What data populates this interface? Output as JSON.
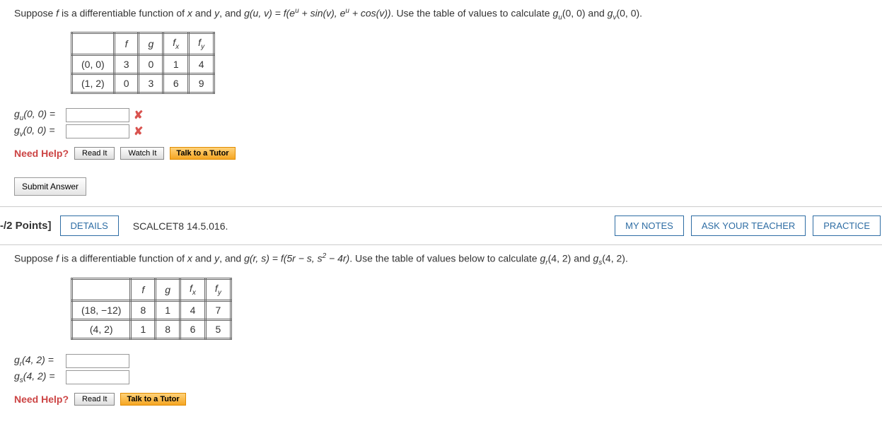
{
  "q1": {
    "text_parts": {
      "p1": "Suppose ",
      "p2": " is a differentiable function of ",
      "p3": " and ",
      "p4": ", and  ",
      "p5": ".  Use the table of values to calculate  ",
      "p6": "  and  ",
      "p7": "."
    },
    "func_g": "g(u, v) = f(e",
    "func_g2": " + sin(v), e",
    "func_g3": " + cos(v))",
    "gu": "g",
    "gu_sub": "u",
    "gu_args": "(0, 0)",
    "gv_sub": "v",
    "table": {
      "headers": [
        "",
        "f",
        "g",
        "f",
        "f"
      ],
      "header_subs": [
        "",
        "",
        "",
        "x",
        "y"
      ],
      "rows": [
        [
          "(0, 0)",
          "3",
          "0",
          "1",
          "4"
        ],
        [
          "(1, 2)",
          "0",
          "3",
          "6",
          "9"
        ]
      ]
    },
    "answers": {
      "gu_label_pre": "g",
      "gu_label_sub": "u",
      "gu_label_post": "(0, 0)  =",
      "gv_label_sub": "v",
      "gv_label_post": "(0, 0)  ="
    },
    "help_label": "Need Help?",
    "read_btn": "Read It",
    "watch_btn": "Watch It",
    "tutor_btn": "Talk to a Tutor"
  },
  "submit_label": "Submit Answer",
  "divider": {
    "points": "-/2 Points]",
    "details": "DETAILS",
    "ref": "SCALCET8 14.5.016.",
    "notes": "MY NOTES",
    "ask": "ASK YOUR TEACHER",
    "practice": "PRACTICE"
  },
  "q2": {
    "text_parts": {
      "p1": "Suppose ",
      "p2": " is a differentiable function of ",
      "p3": " and ",
      "p4": ", and  ",
      "p5": ".  Use the table of values below to calculate  ",
      "p6": "  and  ",
      "p7": "."
    },
    "func_g": "g(r, s) = f(5r − s, s",
    "func_g2": " − 4r)",
    "sup2": "2",
    "gr_sub": "r",
    "gr_args": "(4, 2)",
    "gs_sub": "s",
    "table": {
      "headers": [
        "",
        "f",
        "g",
        "f",
        "f"
      ],
      "header_subs": [
        "",
        "",
        "",
        "x",
        "y"
      ],
      "rows": [
        [
          "(18, −12)",
          "8",
          "1",
          "4",
          "7"
        ],
        [
          "(4, 2)",
          "1",
          "8",
          "6",
          "5"
        ]
      ]
    },
    "answers": {
      "gr_label_pre": "g",
      "gr_label_sub": "r",
      "gr_label_post": "(4, 2)  =",
      "gs_label_sub": "s",
      "gs_label_post": "(4, 2)  ="
    },
    "help_label": "Need Help?",
    "read_btn": "Read It",
    "tutor_btn": "Talk to a Tutor"
  }
}
